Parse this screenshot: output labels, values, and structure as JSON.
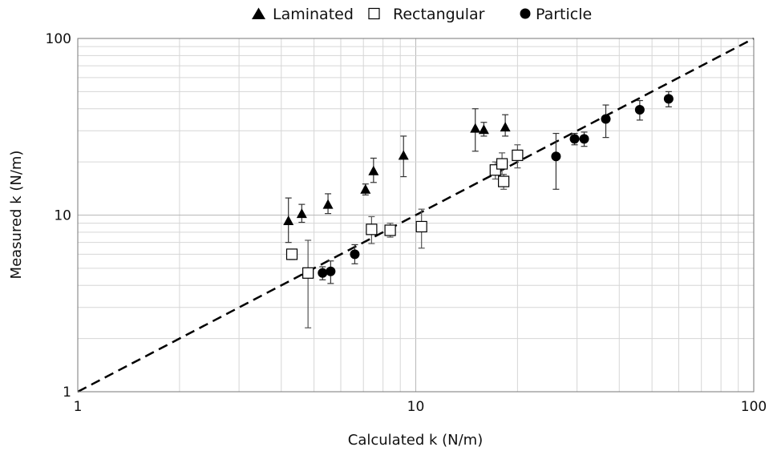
{
  "chart_data": {
    "type": "scatter",
    "xlabel": "Calculated k (N/m)",
    "ylabel": "Measured k (N/m)",
    "xscale": "log",
    "yscale": "log",
    "xlim": [
      1,
      100
    ],
    "ylim": [
      1,
      100
    ],
    "x_ticks": [
      "1",
      "10",
      "100"
    ],
    "y_ticks": [
      "1",
      "10",
      "100"
    ],
    "grid": true,
    "legend_position": "top-center",
    "reference_line": {
      "style": "dashed",
      "x": [
        1,
        100
      ],
      "y": [
        1,
        100
      ]
    },
    "series": [
      {
        "name": "Laminated",
        "marker": "triangle",
        "color": "#000000",
        "points": [
          {
            "x": 4.2,
            "y": 9.3,
            "err": [
              7.0,
              12.5
            ]
          },
          {
            "x": 4.6,
            "y": 10.2,
            "err": [
              9.1,
              11.5
            ]
          },
          {
            "x": 5.5,
            "y": 11.5,
            "err": [
              10.2,
              13.2
            ]
          },
          {
            "x": 7.1,
            "y": 14.0,
            "err": [
              13.0,
              15.0
            ]
          },
          {
            "x": 7.5,
            "y": 17.8,
            "err": [
              15.3,
              21.0
            ]
          },
          {
            "x": 9.2,
            "y": 21.8,
            "err": [
              16.5,
              28.0
            ]
          },
          {
            "x": 15.0,
            "y": 31.0,
            "err": [
              23.0,
              40.0
            ]
          },
          {
            "x": 15.9,
            "y": 30.5,
            "err": [
              28.0,
              33.5
            ]
          },
          {
            "x": 18.4,
            "y": 31.5,
            "err": [
              28.0,
              37.0
            ]
          }
        ]
      },
      {
        "name": "Rectangular",
        "marker": "open-square",
        "color": "#000000",
        "points": [
          {
            "x": 4.3,
            "y": 6.0,
            "err": [
              5.6,
              6.4
            ]
          },
          {
            "x": 4.8,
            "y": 4.7,
            "err": [
              2.3,
              7.2
            ]
          },
          {
            "x": 7.4,
            "y": 8.3,
            "err": [
              6.9,
              9.8
            ]
          },
          {
            "x": 8.4,
            "y": 8.2,
            "err": [
              7.5,
              9.0
            ]
          },
          {
            "x": 10.4,
            "y": 8.6,
            "err": [
              6.5,
              10.8
            ]
          },
          {
            "x": 17.2,
            "y": 18.0,
            "err": [
              16.0,
              20.0
            ]
          },
          {
            "x": 18.0,
            "y": 19.5,
            "err": [
              17.0,
              22.5
            ]
          },
          {
            "x": 18.2,
            "y": 15.5,
            "err": [
              14.0,
              17.0
            ]
          },
          {
            "x": 20.0,
            "y": 21.8,
            "err": [
              18.5,
              25.0
            ]
          }
        ]
      },
      {
        "name": "Particle",
        "marker": "filled-circle",
        "color": "#000000",
        "points": [
          {
            "x": 5.3,
            "y": 4.7,
            "err": [
              4.3,
              5.1
            ]
          },
          {
            "x": 5.6,
            "y": 4.8,
            "err": [
              4.1,
              5.5
            ]
          },
          {
            "x": 6.6,
            "y": 6.0,
            "err": [
              5.3,
              6.8
            ]
          },
          {
            "x": 26.0,
            "y": 21.5,
            "err": [
              14.0,
              29.0
            ]
          },
          {
            "x": 29.5,
            "y": 27.0,
            "err": [
              25.0,
              29.0
            ]
          },
          {
            "x": 31.5,
            "y": 27.0,
            "err": [
              24.5,
              29.5
            ]
          },
          {
            "x": 36.5,
            "y": 35.0,
            "err": [
              27.5,
              42.0
            ]
          },
          {
            "x": 46.0,
            "y": 39.5,
            "err": [
              34.5,
              44.5
            ]
          },
          {
            "x": 56.0,
            "y": 45.5,
            "err": [
              41.0,
              50.0
            ]
          }
        ]
      }
    ]
  }
}
